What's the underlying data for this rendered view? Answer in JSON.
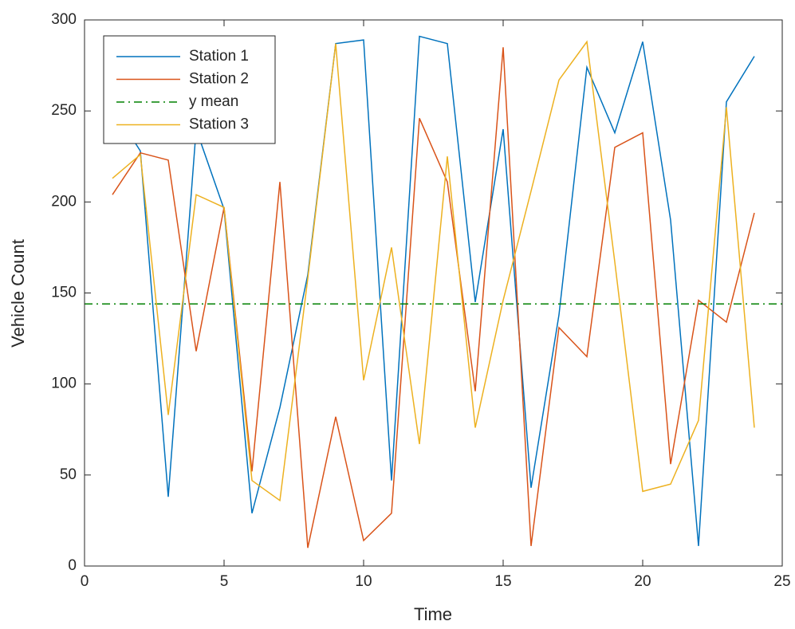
{
  "chart_data": {
    "type": "line",
    "x_label": "Time",
    "y_label": "Vehicle Count",
    "x": [
      1,
      2,
      3,
      4,
      5,
      6,
      7,
      8,
      9,
      10,
      11,
      12,
      13,
      14,
      15,
      16,
      17,
      18,
      19,
      20,
      21,
      22,
      23,
      24
    ],
    "series": [
      {
        "name": "Station 1",
        "color": "#0072bd",
        "values": [
          252,
          228,
          38,
          240,
          196,
          29,
          87,
          160,
          287,
          289,
          47,
          291,
          287,
          145,
          240,
          43,
          138,
          274,
          238,
          288,
          190,
          11,
          255,
          280
        ]
      },
      {
        "name": "Station 2",
        "color": "#d95319",
        "values": [
          204,
          227,
          223,
          118,
          197,
          52,
          211,
          10,
          82,
          14,
          29,
          246,
          211,
          96,
          285,
          11,
          131,
          115,
          230,
          238,
          56,
          146,
          134,
          194
        ]
      },
      {
        "name": "y mean",
        "color": "#008000",
        "dash": "dash-dot",
        "hline": 144
      },
      {
        "name": "Station 3",
        "color": "#edb120",
        "values": [
          213,
          226,
          83,
          204,
          197,
          47,
          36,
          158,
          287,
          102,
          175,
          67,
          225,
          76,
          146,
          206,
          267,
          288,
          167,
          41,
          45,
          80,
          252,
          76
        ]
      }
    ],
    "xlim": [
      0,
      25
    ],
    "xticks": [
      0,
      5,
      10,
      15,
      20,
      25
    ],
    "ylim": [
      0,
      300
    ],
    "yticks": [
      0,
      50,
      100,
      150,
      200,
      250,
      300
    ],
    "grid": false,
    "legend": "upper left"
  }
}
